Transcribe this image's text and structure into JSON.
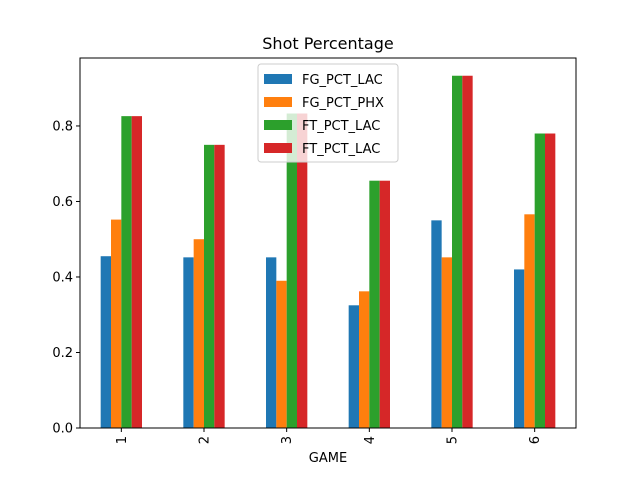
{
  "chart_data": {
    "type": "bar",
    "title": "Shot Percentage",
    "xlabel": "GAME",
    "ylabel": "",
    "categories": [
      "1",
      "2",
      "3",
      "4",
      "5",
      "6"
    ],
    "series": [
      {
        "name": "FG_PCT_LAC",
        "color": "#1f77b4",
        "values": [
          0.455,
          0.452,
          0.452,
          0.325,
          0.55,
          0.42
        ]
      },
      {
        "name": "FG_PCT_PHX",
        "color": "#ff7f0e",
        "values": [
          0.552,
          0.5,
          0.39,
          0.362,
          0.452,
          0.566
        ]
      },
      {
        "name": "FT_PCT_LAC",
        "color": "#2ca02c",
        "values": [
          0.826,
          0.75,
          0.833,
          0.655,
          0.933,
          0.78
        ]
      },
      {
        "name": "FT_PCT_LAC",
        "color": "#d62728",
        "values": [
          0.826,
          0.75,
          0.833,
          0.655,
          0.933,
          0.78
        ]
      }
    ],
    "ylim": [
      0,
      0.98
    ],
    "yticks": [
      0.0,
      0.2,
      0.4,
      0.6,
      0.8
    ],
    "ytick_labels": [
      "0.0",
      "0.2",
      "0.4",
      "0.6",
      "0.8"
    ],
    "grid": false,
    "legend_position": "top-center"
  }
}
